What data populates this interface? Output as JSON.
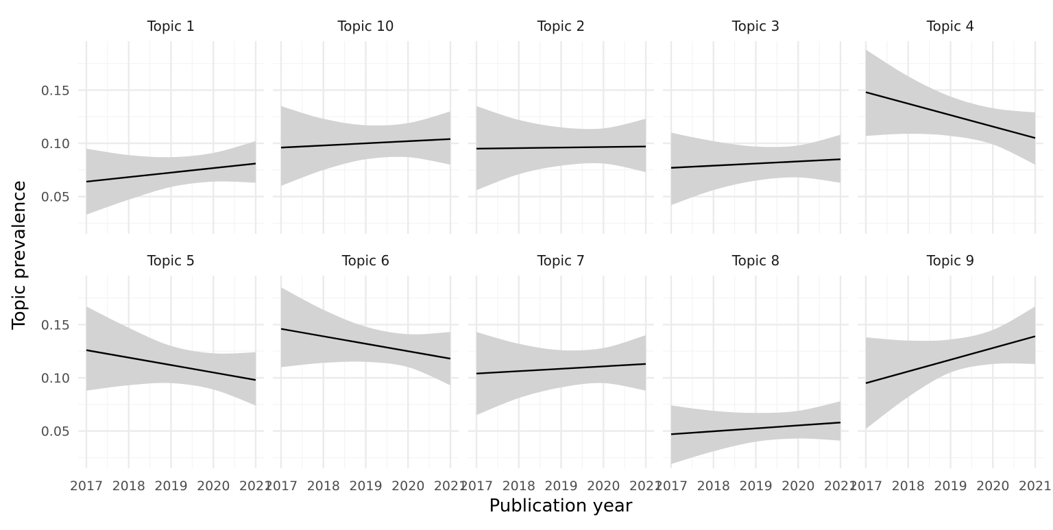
{
  "chart_data": {
    "type": "line",
    "facet": "wrap",
    "nrow": 2,
    "ncol": 5,
    "xlabel": "Publication year",
    "ylabel": "Topic prevalence",
    "x_ticks": [
      "2017",
      "2018",
      "2019",
      "2020",
      "2021"
    ],
    "y_ticks": [
      "0.05",
      "0.10",
      "0.15"
    ],
    "xlim": [
      2017,
      2021
    ],
    "ylim": [
      0.015,
      0.196
    ],
    "grid": true,
    "band": "confidence interval (shaded)",
    "colors": {
      "line": "#000000",
      "band": "#d3d3d3",
      "grid_major": "#ebebeb",
      "grid_minor": "#f4f4f4"
    },
    "panels": [
      {
        "title": "Topic 1",
        "line": [
          {
            "x": 2017,
            "y": 0.064
          },
          {
            "x": 2021,
            "y": 0.081
          }
        ],
        "upper": [
          {
            "x": 2017,
            "y": 0.095
          },
          {
            "x": 2018,
            "y": 0.089
          },
          {
            "x": 2019,
            "y": 0.087
          },
          {
            "x": 2020,
            "y": 0.091
          },
          {
            "x": 2021,
            "y": 0.102
          }
        ],
        "lower": [
          {
            "x": 2017,
            "y": 0.033
          },
          {
            "x": 2018,
            "y": 0.047
          },
          {
            "x": 2019,
            "y": 0.059
          },
          {
            "x": 2020,
            "y": 0.064
          },
          {
            "x": 2021,
            "y": 0.063
          }
        ]
      },
      {
        "title": "Topic 10",
        "line": [
          {
            "x": 2017,
            "y": 0.096
          },
          {
            "x": 2021,
            "y": 0.104
          }
        ],
        "upper": [
          {
            "x": 2017,
            "y": 0.135
          },
          {
            "x": 2018,
            "y": 0.123
          },
          {
            "x": 2019,
            "y": 0.117
          },
          {
            "x": 2020,
            "y": 0.119
          },
          {
            "x": 2021,
            "y": 0.13
          }
        ],
        "lower": [
          {
            "x": 2017,
            "y": 0.06
          },
          {
            "x": 2018,
            "y": 0.075
          },
          {
            "x": 2019,
            "y": 0.085
          },
          {
            "x": 2020,
            "y": 0.087
          },
          {
            "x": 2021,
            "y": 0.08
          }
        ]
      },
      {
        "title": "Topic 2",
        "line": [
          {
            "x": 2017,
            "y": 0.095
          },
          {
            "x": 2021,
            "y": 0.097
          }
        ],
        "upper": [
          {
            "x": 2017,
            "y": 0.135
          },
          {
            "x": 2018,
            "y": 0.122
          },
          {
            "x": 2019,
            "y": 0.115
          },
          {
            "x": 2020,
            "y": 0.114
          },
          {
            "x": 2021,
            "y": 0.123
          }
        ],
        "lower": [
          {
            "x": 2017,
            "y": 0.056
          },
          {
            "x": 2018,
            "y": 0.071
          },
          {
            "x": 2019,
            "y": 0.079
          },
          {
            "x": 2020,
            "y": 0.081
          },
          {
            "x": 2021,
            "y": 0.073
          }
        ]
      },
      {
        "title": "Topic 3",
        "line": [
          {
            "x": 2017,
            "y": 0.077
          },
          {
            "x": 2021,
            "y": 0.085
          }
        ],
        "upper": [
          {
            "x": 2017,
            "y": 0.11
          },
          {
            "x": 2018,
            "y": 0.102
          },
          {
            "x": 2019,
            "y": 0.097
          },
          {
            "x": 2020,
            "y": 0.098
          },
          {
            "x": 2021,
            "y": 0.108
          }
        ],
        "lower": [
          {
            "x": 2017,
            "y": 0.042
          },
          {
            "x": 2018,
            "y": 0.056
          },
          {
            "x": 2019,
            "y": 0.065
          },
          {
            "x": 2020,
            "y": 0.068
          },
          {
            "x": 2021,
            "y": 0.063
          }
        ]
      },
      {
        "title": "Topic 4",
        "line": [
          {
            "x": 2017,
            "y": 0.148
          },
          {
            "x": 2021,
            "y": 0.105
          }
        ],
        "upper": [
          {
            "x": 2017,
            "y": 0.188
          },
          {
            "x": 2018,
            "y": 0.163
          },
          {
            "x": 2019,
            "y": 0.144
          },
          {
            "x": 2020,
            "y": 0.133
          },
          {
            "x": 2021,
            "y": 0.129
          }
        ],
        "lower": [
          {
            "x": 2017,
            "y": 0.107
          },
          {
            "x": 2018,
            "y": 0.109
          },
          {
            "x": 2019,
            "y": 0.107
          },
          {
            "x": 2020,
            "y": 0.099
          },
          {
            "x": 2021,
            "y": 0.08
          }
        ]
      },
      {
        "title": "Topic 5",
        "line": [
          {
            "x": 2017,
            "y": 0.126
          },
          {
            "x": 2021,
            "y": 0.098
          }
        ],
        "upper": [
          {
            "x": 2017,
            "y": 0.167
          },
          {
            "x": 2018,
            "y": 0.147
          },
          {
            "x": 2019,
            "y": 0.13
          },
          {
            "x": 2020,
            "y": 0.123
          },
          {
            "x": 2021,
            "y": 0.124
          }
        ],
        "lower": [
          {
            "x": 2017,
            "y": 0.088
          },
          {
            "x": 2018,
            "y": 0.093
          },
          {
            "x": 2019,
            "y": 0.095
          },
          {
            "x": 2020,
            "y": 0.089
          },
          {
            "x": 2021,
            "y": 0.074
          }
        ]
      },
      {
        "title": "Topic 6",
        "line": [
          {
            "x": 2017,
            "y": 0.146
          },
          {
            "x": 2021,
            "y": 0.118
          }
        ],
        "upper": [
          {
            "x": 2017,
            "y": 0.185
          },
          {
            "x": 2018,
            "y": 0.164
          },
          {
            "x": 2019,
            "y": 0.148
          },
          {
            "x": 2020,
            "y": 0.141
          },
          {
            "x": 2021,
            "y": 0.143
          }
        ],
        "lower": [
          {
            "x": 2017,
            "y": 0.11
          },
          {
            "x": 2018,
            "y": 0.114
          },
          {
            "x": 2019,
            "y": 0.115
          },
          {
            "x": 2020,
            "y": 0.11
          },
          {
            "x": 2021,
            "y": 0.093
          }
        ]
      },
      {
        "title": "Topic 7",
        "line": [
          {
            "x": 2017,
            "y": 0.104
          },
          {
            "x": 2021,
            "y": 0.113
          }
        ],
        "upper": [
          {
            "x": 2017,
            "y": 0.143
          },
          {
            "x": 2018,
            "y": 0.132
          },
          {
            "x": 2019,
            "y": 0.126
          },
          {
            "x": 2020,
            "y": 0.128
          },
          {
            "x": 2021,
            "y": 0.14
          }
        ],
        "lower": [
          {
            "x": 2017,
            "y": 0.065
          },
          {
            "x": 2018,
            "y": 0.081
          },
          {
            "x": 2019,
            "y": 0.091
          },
          {
            "x": 2020,
            "y": 0.095
          },
          {
            "x": 2021,
            "y": 0.088
          }
        ]
      },
      {
        "title": "Topic 8",
        "line": [
          {
            "x": 2017,
            "y": 0.047
          },
          {
            "x": 2021,
            "y": 0.058
          }
        ],
        "upper": [
          {
            "x": 2017,
            "y": 0.074
          },
          {
            "x": 2018,
            "y": 0.069
          },
          {
            "x": 2019,
            "y": 0.067
          },
          {
            "x": 2020,
            "y": 0.069
          },
          {
            "x": 2021,
            "y": 0.078
          }
        ],
        "lower": [
          {
            "x": 2017,
            "y": 0.019
          },
          {
            "x": 2018,
            "y": 0.031
          },
          {
            "x": 2019,
            "y": 0.04
          },
          {
            "x": 2020,
            "y": 0.043
          },
          {
            "x": 2021,
            "y": 0.041
          }
        ]
      },
      {
        "title": "Topic 9",
        "line": [
          {
            "x": 2017,
            "y": 0.095
          },
          {
            "x": 2021,
            "y": 0.139
          }
        ],
        "upper": [
          {
            "x": 2017,
            "y": 0.138
          },
          {
            "x": 2018,
            "y": 0.135
          },
          {
            "x": 2019,
            "y": 0.136
          },
          {
            "x": 2020,
            "y": 0.145
          },
          {
            "x": 2021,
            "y": 0.167
          }
        ],
        "lower": [
          {
            "x": 2017,
            "y": 0.052
          },
          {
            "x": 2018,
            "y": 0.082
          },
          {
            "x": 2019,
            "y": 0.105
          },
          {
            "x": 2020,
            "y": 0.113
          },
          {
            "x": 2021,
            "y": 0.113
          }
        ]
      }
    ]
  }
}
